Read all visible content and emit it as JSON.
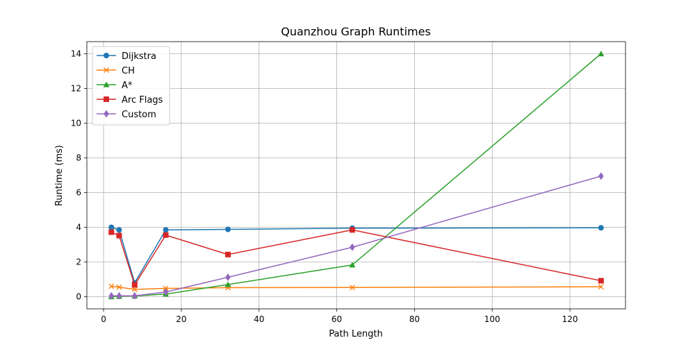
{
  "chart_data": {
    "type": "line",
    "title": "Quanzhou Graph Runtimes",
    "xlabel": "Path Length",
    "ylabel": "Runtime (ms)",
    "xlim": [
      -4.3,
      134.3
    ],
    "ylim": [
      -0.7,
      14.7
    ],
    "xticks": [
      0,
      20,
      40,
      60,
      80,
      100,
      120
    ],
    "yticks": [
      0,
      2,
      4,
      6,
      8,
      10,
      12,
      14
    ],
    "grid": true,
    "legend_position": "top-left",
    "series": [
      {
        "name": "Dijkstra",
        "color": "#1f77b4",
        "marker": "circle",
        "x": [
          2,
          4,
          8,
          16,
          32,
          64,
          128
        ],
        "y": [
          4.0,
          3.85,
          0.8,
          3.85,
          3.88,
          3.95,
          3.97
        ]
      },
      {
        "name": "CH",
        "color": "#ff7f0e",
        "marker": "x",
        "x": [
          2,
          4,
          8,
          16,
          32,
          64,
          128
        ],
        "y": [
          0.6,
          0.55,
          0.42,
          0.48,
          0.52,
          0.53,
          0.57
        ]
      },
      {
        "name": "A*",
        "color": "#2ca02c",
        "marker": "triangle",
        "x": [
          2,
          4,
          8,
          16,
          32,
          64,
          128
        ],
        "y": [
          0.0,
          0.02,
          0.04,
          0.15,
          0.7,
          1.83,
          14.0
        ]
      },
      {
        "name": "Arc Flags",
        "color": "#d62728",
        "marker": "square",
        "x": [
          2,
          4,
          8,
          16,
          32,
          64,
          128
        ],
        "y": [
          3.72,
          3.52,
          0.68,
          3.55,
          2.43,
          3.85,
          0.92
        ]
      },
      {
        "name": "Custom",
        "color": "#9467bd",
        "marker": "diamond",
        "x": [
          2,
          4,
          8,
          16,
          32,
          64,
          128
        ],
        "y": [
          0.05,
          0.05,
          0.05,
          0.27,
          1.12,
          2.85,
          6.95
        ]
      }
    ]
  }
}
